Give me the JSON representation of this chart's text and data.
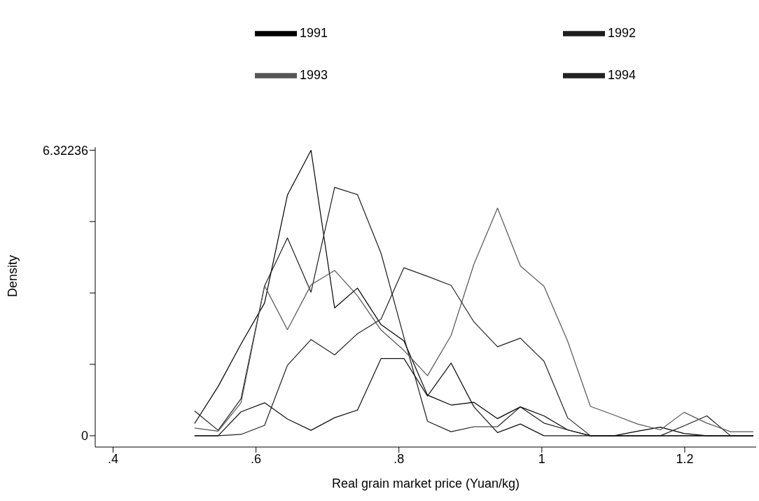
{
  "chart_data": {
    "type": "line",
    "xlabel": "Real grain market price (Yuan/kg)",
    "ylabel": "Density",
    "x": [
      0.514,
      0.547,
      0.579,
      0.612,
      0.644,
      0.677,
      0.71,
      0.742,
      0.775,
      0.807,
      0.84,
      0.873,
      0.905,
      0.938,
      0.97,
      1.003,
      1.036,
      1.068,
      1.101,
      1.134,
      1.166,
      1.199,
      1.231,
      1.264,
      1.296
    ],
    "series": [
      {
        "name": "1991",
        "color": "#000000",
        "values": [
          0.27,
          1.09,
          2.03,
          2.94,
          5.33,
          6.32,
          2.83,
          3.27,
          2.46,
          2.1,
          0.9,
          0.68,
          0.74,
          0.38,
          0.64,
          0.44,
          0.13,
          0,
          0,
          0.1,
          0.19,
          0.05,
          0,
          0,
          0
        ]
      },
      {
        "name": "1992",
        "color": "#1e1e1e",
        "values": [
          0.55,
          0.12,
          0.82,
          3.32,
          4.38,
          3.18,
          5.5,
          5.34,
          4.04,
          2.18,
          0.32,
          0.09,
          0.2,
          0.2,
          0.64,
          0.28,
          0.13,
          0,
          0,
          0,
          0,
          0.22,
          0.44,
          0,
          0
        ]
      },
      {
        "name": "1993",
        "color": "#555555",
        "values": [
          0.17,
          0.1,
          0.73,
          3.32,
          2.35,
          3.34,
          3.66,
          3.1,
          2.34,
          1.89,
          1.33,
          2.22,
          3.8,
          5.04,
          3.76,
          3.31,
          2.1,
          0.65,
          0.46,
          0.26,
          0.13,
          0.52,
          0.28,
          0.09,
          0.09
        ]
      },
      {
        "name": "1994",
        "color": "#222222",
        "values": [
          0,
          0,
          0.03,
          0.23,
          1.56,
          2.13,
          1.79,
          2.26,
          2.58,
          3.72,
          3.53,
          3.33,
          2.52,
          1.97,
          2.16,
          1.65,
          0.4,
          0,
          0,
          0,
          0,
          0,
          0,
          0,
          0
        ]
      },
      {
        "color": "#111111",
        "values": [
          0,
          0,
          0.53,
          0.73,
          0.37,
          0.12,
          0.4,
          0.57,
          1.71,
          1.71,
          0.88,
          1.61,
          0.64,
          0.07,
          0.26,
          0,
          0,
          0,
          0,
          0,
          0,
          0,
          0,
          0,
          0
        ]
      }
    ],
    "xlim": [
      0.375,
      1.3
    ],
    "xticks": [
      {
        "value": 0.4,
        "label": ".4"
      },
      {
        "value": 0.6,
        "label": ".6"
      },
      {
        "value": 0.8,
        "label": ".8"
      },
      1,
      1.2
    ],
    "ylim": [
      -0.25,
      6.39
    ],
    "yticks": [
      0,
      {
        "value": 1.58059,
        "label": null
      },
      {
        "value": 3.16118,
        "label": null
      },
      {
        "value": 4.74177,
        "label": null
      },
      6.32236
    ],
    "grid": false,
    "legend": "top"
  }
}
